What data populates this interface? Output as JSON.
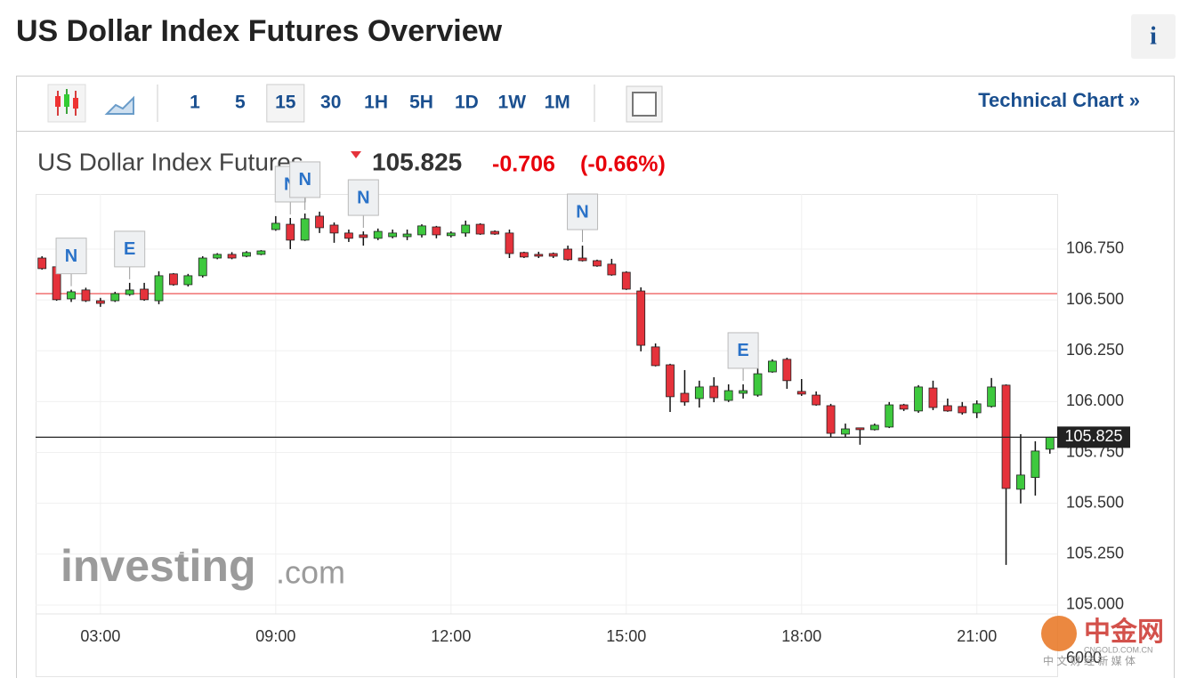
{
  "header": {
    "title": "US Dollar Index Futures Overview",
    "info": "i"
  },
  "toolbar": {
    "intervals": [
      "1",
      "5",
      "15",
      "30",
      "1H",
      "5H",
      "1D",
      "1W",
      "1M"
    ],
    "selected_index": 2,
    "link": "Technical Chart »"
  },
  "quote": {
    "name": "US Dollar Index Futures",
    "change": "-0.706",
    "percent": "(-0.66%)"
  },
  "watermark": {
    "brand": "investing",
    "suffix": ".com",
    "logo": "中金网",
    "site": "CNGOLD.COM.CN",
    "slogan": "中 文 财 经 新 媒 体"
  },
  "chart_data": {
    "type": "candlestick",
    "categories": [
      null,
      null,
      null,
      null,
      "03:00",
      null,
      null,
      null,
      null,
      null,
      null,
      null,
      null,
      null,
      null,
      null,
      "09:00",
      null,
      null,
      null,
      null,
      null,
      null,
      null,
      null,
      null,
      null,
      null,
      "12:00",
      null,
      null,
      null,
      null,
      null,
      null,
      null,
      null,
      null,
      null,
      null,
      "15:00",
      null,
      null,
      null,
      null,
      null,
      null,
      null,
      null,
      null,
      null,
      null,
      "18:00",
      null,
      null,
      null,
      null,
      null,
      null,
      null,
      null,
      null,
      null,
      null,
      "21:00",
      null,
      null,
      null,
      null,
      null
    ],
    "candles": [
      [
        106.706,
        106.715,
        106.649,
        106.654
      ],
      [
        106.663,
        106.68,
        106.496,
        106.501
      ],
      [
        106.505,
        106.55,
        106.49,
        106.54
      ],
      [
        106.549,
        106.56,
        106.49,
        106.496
      ],
      [
        106.496,
        106.51,
        106.466,
        106.483
      ],
      [
        106.496,
        106.54,
        106.49,
        106.531
      ],
      [
        106.527,
        106.584,
        106.52,
        106.549
      ],
      [
        106.553,
        106.584,
        106.496,
        106.501
      ],
      [
        106.496,
        106.641,
        106.479,
        106.619
      ],
      [
        106.628,
        106.632,
        106.57,
        106.575
      ],
      [
        106.575,
        106.628,
        106.566,
        106.619
      ],
      [
        106.619,
        106.715,
        106.61,
        106.706
      ],
      [
        106.706,
        106.73,
        106.7,
        106.724
      ],
      [
        106.724,
        106.735,
        106.7,
        106.706
      ],
      [
        106.715,
        106.74,
        106.71,
        106.733
      ],
      [
        106.724,
        106.745,
        106.72,
        106.741
      ],
      [
        106.846,
        106.912,
        106.84,
        106.877
      ],
      [
        106.872,
        106.903,
        106.75,
        106.794
      ],
      [
        106.794,
        106.925,
        106.79,
        106.899
      ],
      [
        106.912,
        106.934,
        106.829,
        106.855
      ],
      [
        106.868,
        106.881,
        106.781,
        106.829
      ],
      [
        106.829,
        106.846,
        106.785,
        106.803
      ],
      [
        106.82,
        106.837,
        106.767,
        106.807
      ],
      [
        106.803,
        106.851,
        106.794,
        106.837
      ],
      [
        106.811,
        106.846,
        106.803,
        106.829
      ],
      [
        106.811,
        106.846,
        106.794,
        106.824
      ],
      [
        106.82,
        106.872,
        106.807,
        106.864
      ],
      [
        106.859,
        106.864,
        106.803,
        106.82
      ],
      [
        106.816,
        106.837,
        106.807,
        106.829
      ],
      [
        106.829,
        106.89,
        106.811,
        106.868
      ],
      [
        106.872,
        106.877,
        106.82,
        106.824
      ],
      [
        106.837,
        106.842,
        106.82,
        106.824
      ],
      [
        106.829,
        106.846,
        106.706,
        106.728
      ],
      [
        106.733,
        106.737,
        106.706,
        106.711
      ],
      [
        106.724,
        106.737,
        106.706,
        106.715
      ],
      [
        106.728,
        106.733,
        106.706,
        106.715
      ],
      [
        106.75,
        106.767,
        106.693,
        106.698
      ],
      [
        106.706,
        106.767,
        106.689,
        106.693
      ],
      [
        106.693,
        106.698,
        106.663,
        106.667
      ],
      [
        106.676,
        106.702,
        106.619,
        106.623
      ],
      [
        106.636,
        106.641,
        106.549,
        106.553
      ],
      [
        106.544,
        106.562,
        106.247,
        106.277
      ],
      [
        106.269,
        106.286,
        106.173,
        106.177
      ],
      [
        106.181,
        106.186,
        105.949,
        106.024
      ],
      [
        106.041,
        106.155,
        105.98,
        105.998
      ],
      [
        106.015,
        106.103,
        105.971,
        106.072
      ],
      [
        106.076,
        106.12,
        105.997,
        106.019
      ],
      [
        106.006,
        106.085,
        105.998,
        106.054
      ],
      [
        106.041,
        106.085,
        106.015,
        106.054
      ],
      [
        106.032,
        106.172,
        106.024,
        106.137
      ],
      [
        106.146,
        106.208,
        106.142,
        106.199
      ],
      [
        106.208,
        106.216,
        106.063,
        106.103
      ],
      [
        106.05,
        106.111,
        106.028,
        106.037
      ],
      [
        106.032,
        106.05,
        105.98,
        105.984
      ],
      [
        105.98,
        105.989,
        105.823,
        105.844
      ],
      [
        105.84,
        105.892,
        105.827,
        105.866
      ],
      [
        105.871,
        105.871,
        105.788,
        105.862
      ],
      [
        105.862,
        105.892,
        105.858,
        105.884
      ],
      [
        105.875,
        105.998,
        105.87,
        105.984
      ],
      [
        105.984,
        105.989,
        105.954,
        105.963
      ],
      [
        105.954,
        106.081,
        105.945,
        106.072
      ],
      [
        106.067,
        106.103,
        105.958,
        105.971
      ],
      [
        105.98,
        106.015,
        105.95,
        105.954
      ],
      [
        105.976,
        105.998,
        105.936,
        105.945
      ],
      [
        105.945,
        106.006,
        105.919,
        105.989
      ],
      [
        105.976,
        106.116,
        105.971,
        106.072
      ],
      [
        106.081,
        106.085,
        105.197,
        105.573
      ],
      [
        105.569,
        105.84,
        105.499,
        105.639
      ],
      [
        105.627,
        105.805,
        105.538,
        105.757
      ],
      [
        105.766,
        105.827,
        105.744,
        105.825
      ]
    ],
    "up_color": "#3ec93e",
    "down_color": "#e5323b",
    "events": [
      {
        "label": "N",
        "index": 2
      },
      {
        "label": "E",
        "index": 6
      },
      {
        "label": "N",
        "index": 17
      },
      {
        "label": "N",
        "index": 18
      },
      {
        "label": "N",
        "index": 22
      },
      {
        "label": "N",
        "index": 37
      },
      {
        "label": "E",
        "index": 48
      }
    ],
    "last": 105.825,
    "reference_line": 106.531,
    "ylim": [
      104.956,
      107.021
    ],
    "yticks": [
      {
        "value": 106.75,
        "label": "106.750"
      },
      {
        "value": 106.5,
        "label": "106.500"
      },
      {
        "value": 106.25,
        "label": "106.250"
      },
      {
        "value": 106,
        "label": "106.000"
      },
      {
        "value": 105.75,
        "label": "105.750"
      },
      {
        "value": 105.5,
        "label": "105.500"
      },
      {
        "value": 105.25,
        "label": "105.250"
      },
      {
        "value": 105,
        "label": "105.000"
      }
    ],
    "grid": true,
    "volume_label": "6000"
  }
}
